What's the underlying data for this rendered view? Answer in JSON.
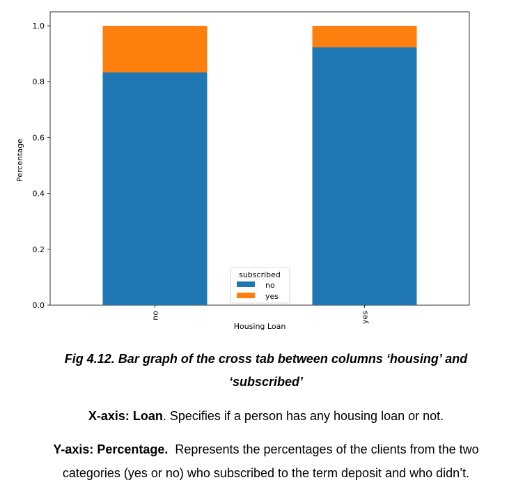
{
  "chart_data": {
    "type": "bar",
    "stacked": true,
    "categories": [
      "no",
      "yes"
    ],
    "series": [
      {
        "name": "no",
        "color": "#1f77b4",
        "values": [
          0.833,
          0.923
        ]
      },
      {
        "name": "yes",
        "color": "#ff7f0e",
        "values": [
          0.167,
          0.077
        ]
      }
    ],
    "xlabel": "Housing Loan",
    "ylabel": "Percentage",
    "ylim": [
      0,
      1.05
    ],
    "yticks": [
      "0.0",
      "0.2",
      "0.4",
      "0.6",
      "0.8",
      "1.0"
    ],
    "legend": {
      "title": "subscribed",
      "placement": "bottom-center"
    },
    "grid": false
  },
  "caption": {
    "line1": "Fig 4.12. Bar graph of the cross tab between columns ‘housing’ and",
    "line2": "‘subscribed’"
  },
  "x_axis_note": {
    "label": "X-axis: Loan",
    "text": ". Specifies if a person has any housing loan or not."
  },
  "y_axis_note": {
    "label": "Y-axis: Percentage.",
    "text_line1": "  Represents the percentages of the clients from the two",
    "text_line2": "categories (yes or no) who subscribed to the term deposit and who didn’t."
  }
}
